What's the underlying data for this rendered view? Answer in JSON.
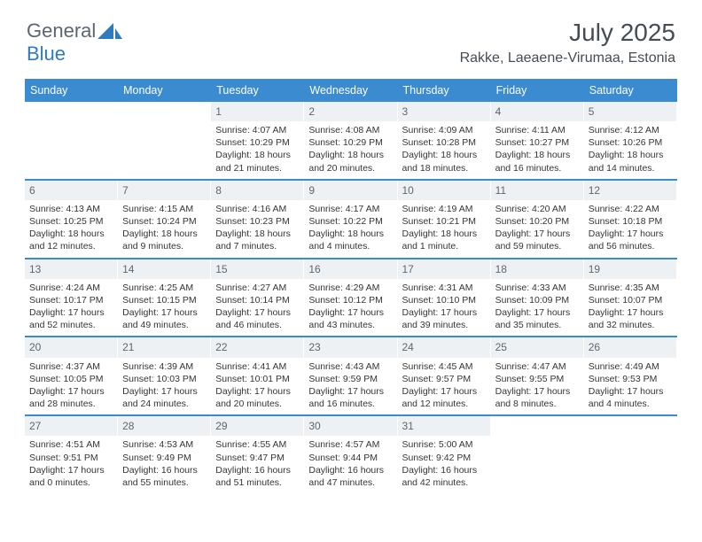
{
  "brand": {
    "part1": "General",
    "part2": "Blue"
  },
  "title": "July 2025",
  "location": "Rakke, Laeaene-Virumaa, Estonia",
  "colors": {
    "header_bg": "#3b8bd0",
    "header_text": "#ffffff",
    "daynum_bg": "#eef1f3",
    "daynum_text": "#5c6872",
    "body_text": "#353535",
    "brand_gray": "#5a6770",
    "brand_blue": "#2f7bbf",
    "title_color": "#444c54"
  },
  "day_labels": [
    "Sunday",
    "Monday",
    "Tuesday",
    "Wednesday",
    "Thursday",
    "Friday",
    "Saturday"
  ],
  "weeks": [
    [
      null,
      null,
      {
        "n": "1",
        "sunrise": "4:07 AM",
        "sunset": "10:29 PM",
        "daylight": "18 hours and 21 minutes."
      },
      {
        "n": "2",
        "sunrise": "4:08 AM",
        "sunset": "10:29 PM",
        "daylight": "18 hours and 20 minutes."
      },
      {
        "n": "3",
        "sunrise": "4:09 AM",
        "sunset": "10:28 PM",
        "daylight": "18 hours and 18 minutes."
      },
      {
        "n": "4",
        "sunrise": "4:11 AM",
        "sunset": "10:27 PM",
        "daylight": "18 hours and 16 minutes."
      },
      {
        "n": "5",
        "sunrise": "4:12 AM",
        "sunset": "10:26 PM",
        "daylight": "18 hours and 14 minutes."
      }
    ],
    [
      {
        "n": "6",
        "sunrise": "4:13 AM",
        "sunset": "10:25 PM",
        "daylight": "18 hours and 12 minutes."
      },
      {
        "n": "7",
        "sunrise": "4:15 AM",
        "sunset": "10:24 PM",
        "daylight": "18 hours and 9 minutes."
      },
      {
        "n": "8",
        "sunrise": "4:16 AM",
        "sunset": "10:23 PM",
        "daylight": "18 hours and 7 minutes."
      },
      {
        "n": "9",
        "sunrise": "4:17 AM",
        "sunset": "10:22 PM",
        "daylight": "18 hours and 4 minutes."
      },
      {
        "n": "10",
        "sunrise": "4:19 AM",
        "sunset": "10:21 PM",
        "daylight": "18 hours and 1 minute."
      },
      {
        "n": "11",
        "sunrise": "4:20 AM",
        "sunset": "10:20 PM",
        "daylight": "17 hours and 59 minutes."
      },
      {
        "n": "12",
        "sunrise": "4:22 AM",
        "sunset": "10:18 PM",
        "daylight": "17 hours and 56 minutes."
      }
    ],
    [
      {
        "n": "13",
        "sunrise": "4:24 AM",
        "sunset": "10:17 PM",
        "daylight": "17 hours and 52 minutes."
      },
      {
        "n": "14",
        "sunrise": "4:25 AM",
        "sunset": "10:15 PM",
        "daylight": "17 hours and 49 minutes."
      },
      {
        "n": "15",
        "sunrise": "4:27 AM",
        "sunset": "10:14 PM",
        "daylight": "17 hours and 46 minutes."
      },
      {
        "n": "16",
        "sunrise": "4:29 AM",
        "sunset": "10:12 PM",
        "daylight": "17 hours and 43 minutes."
      },
      {
        "n": "17",
        "sunrise": "4:31 AM",
        "sunset": "10:10 PM",
        "daylight": "17 hours and 39 minutes."
      },
      {
        "n": "18",
        "sunrise": "4:33 AM",
        "sunset": "10:09 PM",
        "daylight": "17 hours and 35 minutes."
      },
      {
        "n": "19",
        "sunrise": "4:35 AM",
        "sunset": "10:07 PM",
        "daylight": "17 hours and 32 minutes."
      }
    ],
    [
      {
        "n": "20",
        "sunrise": "4:37 AM",
        "sunset": "10:05 PM",
        "daylight": "17 hours and 28 minutes."
      },
      {
        "n": "21",
        "sunrise": "4:39 AM",
        "sunset": "10:03 PM",
        "daylight": "17 hours and 24 minutes."
      },
      {
        "n": "22",
        "sunrise": "4:41 AM",
        "sunset": "10:01 PM",
        "daylight": "17 hours and 20 minutes."
      },
      {
        "n": "23",
        "sunrise": "4:43 AM",
        "sunset": "9:59 PM",
        "daylight": "17 hours and 16 minutes."
      },
      {
        "n": "24",
        "sunrise": "4:45 AM",
        "sunset": "9:57 PM",
        "daylight": "17 hours and 12 minutes."
      },
      {
        "n": "25",
        "sunrise": "4:47 AM",
        "sunset": "9:55 PM",
        "daylight": "17 hours and 8 minutes."
      },
      {
        "n": "26",
        "sunrise": "4:49 AM",
        "sunset": "9:53 PM",
        "daylight": "17 hours and 4 minutes."
      }
    ],
    [
      {
        "n": "27",
        "sunrise": "4:51 AM",
        "sunset": "9:51 PM",
        "daylight": "17 hours and 0 minutes."
      },
      {
        "n": "28",
        "sunrise": "4:53 AM",
        "sunset": "9:49 PM",
        "daylight": "16 hours and 55 minutes."
      },
      {
        "n": "29",
        "sunrise": "4:55 AM",
        "sunset": "9:47 PM",
        "daylight": "16 hours and 51 minutes."
      },
      {
        "n": "30",
        "sunrise": "4:57 AM",
        "sunset": "9:44 PM",
        "daylight": "16 hours and 47 minutes."
      },
      {
        "n": "31",
        "sunrise": "5:00 AM",
        "sunset": "9:42 PM",
        "daylight": "16 hours and 42 minutes."
      },
      null,
      null
    ]
  ],
  "labels": {
    "sunrise_prefix": "Sunrise: ",
    "sunset_prefix": "Sunset: ",
    "daylight_prefix": "Daylight: "
  }
}
